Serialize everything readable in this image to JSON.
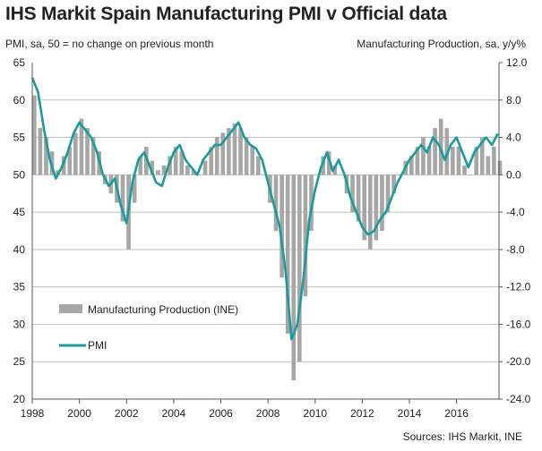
{
  "header": {
    "title": "IHS Markit Spain Manufacturing PMI v Official data",
    "left_axis_note": "PMI, sa, 50 = no change on previous month",
    "right_axis_note": "Manufacturing Production, sa, y/y%",
    "source": "Sources: IHS Markit, INE"
  },
  "colors": {
    "pmi": "#1a9a9a",
    "production": "#a6a6a6",
    "grid": "#bfbfbf",
    "axis": "#555555"
  },
  "chart_data": {
    "type": "line+bar",
    "title": "IHS Markit Spain Manufacturing PMI v Official data",
    "x_ticks": [
      "1998",
      "2000",
      "2002",
      "2004",
      "2006",
      "2008",
      "2010",
      "2012",
      "2014",
      "2016"
    ],
    "x_range": [
      1998,
      2017.8
    ],
    "left_axis": {
      "label": "PMI, sa, 50 = no change on previous month",
      "range": [
        20,
        65
      ],
      "ticks": [
        "20",
        "25",
        "30",
        "35",
        "40",
        "45",
        "50",
        "55",
        "60",
        "65"
      ]
    },
    "right_axis": {
      "label": "Manufacturing Production, sa, y/y%",
      "range": [
        -24,
        12
      ],
      "ticks": [
        "12.0",
        "8.0",
        "4.0",
        "0.0",
        "-4.0",
        "-8.0",
        "-12.0",
        "-16.0",
        "-20.0",
        "-24.0"
      ]
    },
    "series": [
      {
        "name": "PMI",
        "kind": "line",
        "axis": "left",
        "x": [
          1998.0,
          1998.25,
          1998.5,
          1998.75,
          1999.0,
          1999.25,
          1999.5,
          1999.75,
          2000.0,
          2000.25,
          2000.5,
          2000.75,
          2001.0,
          2001.25,
          2001.5,
          2001.75,
          2002.0,
          2002.25,
          2002.5,
          2002.75,
          2003.0,
          2003.25,
          2003.5,
          2003.75,
          2004.0,
          2004.25,
          2004.5,
          2004.75,
          2005.0,
          2005.25,
          2005.5,
          2005.75,
          2006.0,
          2006.25,
          2006.5,
          2006.75,
          2007.0,
          2007.25,
          2007.5,
          2007.75,
          2008.0,
          2008.25,
          2008.5,
          2008.75,
          2009.0,
          2009.25,
          2009.5,
          2009.75,
          2010.0,
          2010.25,
          2010.5,
          2010.75,
          2011.0,
          2011.25,
          2011.5,
          2011.75,
          2012.0,
          2012.25,
          2012.5,
          2012.75,
          2013.0,
          2013.25,
          2013.5,
          2013.75,
          2014.0,
          2014.25,
          2014.5,
          2014.75,
          2015.0,
          2015.25,
          2015.5,
          2015.75,
          2016.0,
          2016.25,
          2016.5,
          2016.75,
          2017.0,
          2017.25,
          2017.5,
          2017.75
        ],
        "values": [
          63,
          61,
          56,
          52,
          49.5,
          51,
          53,
          55.5,
          57,
          56,
          55,
          53,
          50,
          48.5,
          49.5,
          46,
          43.5,
          49,
          52,
          53,
          51,
          49,
          48.5,
          51,
          53,
          54,
          52,
          51,
          50,
          52,
          53,
          54,
          54,
          55,
          56,
          57,
          55,
          54,
          53.5,
          52,
          49,
          46,
          43,
          37,
          28,
          30,
          36,
          44,
          48,
          51,
          53,
          50.5,
          52,
          50,
          47,
          45,
          43,
          42,
          42.5,
          44,
          45,
          47,
          49,
          50.5,
          52,
          53,
          54,
          53,
          55,
          54,
          52,
          54,
          55,
          53,
          51,
          53,
          54,
          55,
          54,
          55.5
        ]
      },
      {
        "name": "Manufacturing Production (INE)",
        "kind": "bar",
        "axis": "right",
        "x": [
          1998.0,
          1998.25,
          1998.5,
          1998.75,
          1999.0,
          1999.25,
          1999.5,
          1999.75,
          2000.0,
          2000.25,
          2000.5,
          2000.75,
          2001.0,
          2001.25,
          2001.5,
          2001.75,
          2002.0,
          2002.25,
          2002.5,
          2002.75,
          2003.0,
          2003.25,
          2003.5,
          2003.75,
          2004.0,
          2004.25,
          2004.5,
          2004.75,
          2005.0,
          2005.25,
          2005.5,
          2005.75,
          2006.0,
          2006.25,
          2006.5,
          2006.75,
          2007.0,
          2007.25,
          2007.5,
          2007.75,
          2008.0,
          2008.25,
          2008.5,
          2008.75,
          2009.0,
          2009.25,
          2009.5,
          2009.75,
          2010.0,
          2010.25,
          2010.5,
          2010.75,
          2011.0,
          2011.25,
          2011.5,
          2011.75,
          2012.0,
          2012.25,
          2012.5,
          2012.75,
          2013.0,
          2013.25,
          2013.5,
          2013.75,
          2014.0,
          2014.25,
          2014.5,
          2014.75,
          2015.0,
          2015.25,
          2015.5,
          2015.75,
          2016.0,
          2016.25,
          2016.5,
          2016.75,
          2017.0,
          2017.25,
          2017.5,
          2017.75
        ],
        "values": [
          8.5,
          5,
          4,
          2.5,
          0.5,
          2,
          3,
          4.5,
          6,
          5,
          4,
          2.5,
          -1,
          -2,
          -3,
          -5,
          -8,
          -3,
          2,
          3,
          1.5,
          0.5,
          1,
          2,
          3,
          2.5,
          1,
          0.5,
          0,
          1.5,
          3,
          4,
          4.5,
          5,
          5.5,
          5,
          4,
          3,
          2,
          0,
          -3,
          -6,
          -11,
          -17,
          -22,
          -20,
          -13,
          -6,
          0,
          2,
          2.5,
          1,
          0,
          -2,
          -4,
          -5,
          -7,
          -8,
          -7,
          -6,
          -4,
          -2,
          0,
          1.5,
          2,
          3,
          4,
          3,
          5,
          6,
          5,
          3,
          3,
          1,
          0,
          3,
          4,
          2,
          3,
          1.5
        ]
      }
    ],
    "legend": [
      "Manufacturing Production (INE)",
      "PMI"
    ]
  }
}
